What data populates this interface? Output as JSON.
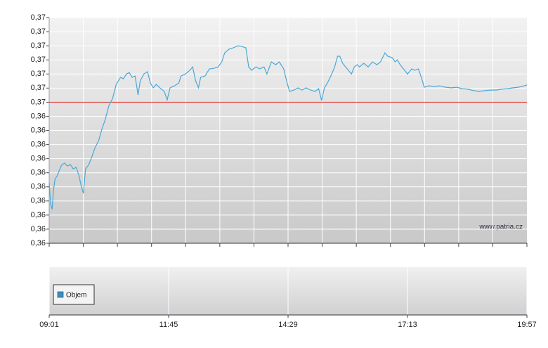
{
  "chart_data": [
    {
      "type": "line",
      "source": "www.patria.cz",
      "xlim": [
        541,
        1197
      ],
      "ylim": [
        0.36,
        0.368
      ],
      "yticks": [
        {
          "value": 0.36,
          "label": "0,36"
        },
        {
          "value": 0.3605,
          "label": "0,36"
        },
        {
          "value": 0.361,
          "label": "0,36"
        },
        {
          "value": 0.3615,
          "label": "0,36"
        },
        {
          "value": 0.362,
          "label": "0,36"
        },
        {
          "value": 0.3625,
          "label": "0,36"
        },
        {
          "value": 0.363,
          "label": "0,36"
        },
        {
          "value": 0.3635,
          "label": "0,36"
        },
        {
          "value": 0.364,
          "label": "0,36"
        },
        {
          "value": 0.3645,
          "label": "0,36"
        },
        {
          "value": 0.365,
          "label": "0,37"
        },
        {
          "value": 0.3655,
          "label": "0,37"
        },
        {
          "value": 0.366,
          "label": "0,37"
        },
        {
          "value": 0.3665,
          "label": "0,37"
        },
        {
          "value": 0.367,
          "label": "0,37"
        },
        {
          "value": 0.3675,
          "label": "0,37"
        },
        {
          "value": 0.368,
          "label": "0,37"
        }
      ],
      "grid": true,
      "reference_line": {
        "value": 0.365,
        "color": "#e03030"
      },
      "x": [
        541,
        543,
        545,
        547,
        549,
        552,
        555,
        558,
        562,
        566,
        570,
        574,
        578,
        582,
        585,
        588,
        591,
        595,
        599,
        604,
        609,
        613,
        618,
        623,
        628,
        633,
        636,
        639,
        643,
        647,
        651,
        655,
        659,
        663,
        666,
        671,
        676,
        680,
        684,
        688,
        693,
        699,
        703,
        707,
        713,
        719,
        722,
        728,
        734,
        738,
        742,
        746,
        749,
        755,
        761,
        767,
        773,
        778,
        782,
        788,
        794,
        800,
        805,
        811,
        815,
        819,
        825,
        830,
        836,
        840,
        846,
        852,
        857,
        863,
        867,
        871,
        877,
        883,
        888,
        894,
        900,
        906,
        911,
        915,
        919,
        923,
        929,
        933,
        937,
        940,
        944,
        948,
        952,
        956,
        960,
        964,
        967,
        973,
        979,
        985,
        991,
        996,
        1002,
        1006,
        1012,
        1016,
        1019,
        1023,
        1029,
        1033,
        1039,
        1043,
        1048,
        1052,
        1056,
        1062,
        1070,
        1077,
        1085,
        1093,
        1101,
        1108,
        1116,
        1124,
        1131,
        1139,
        1147,
        1155,
        1162,
        1170,
        1178,
        1185,
        1193,
        1197
      ],
      "series": [
        {
          "color": "#4aa8d8",
          "values": [
            0.36214,
            0.3614,
            0.3612,
            0.36189,
            0.36227,
            0.36239,
            0.36259,
            0.36277,
            0.36284,
            0.36274,
            0.36279,
            0.36264,
            0.36269,
            0.36239,
            0.36202,
            0.36177,
            0.36264,
            0.36277,
            0.36302,
            0.36339,
            0.36364,
            0.36401,
            0.36439,
            0.36488,
            0.36513,
            0.36563,
            0.36576,
            0.36588,
            0.36583,
            0.366,
            0.36605,
            0.36588,
            0.36593,
            0.36526,
            0.36576,
            0.366,
            0.36608,
            0.36568,
            0.36551,
            0.36563,
            0.36551,
            0.36538,
            0.36508,
            0.36551,
            0.36558,
            0.36568,
            0.36593,
            0.366,
            0.36613,
            0.36625,
            0.36576,
            0.36551,
            0.36588,
            0.36593,
            0.36618,
            0.3662,
            0.36625,
            0.36643,
            0.36675,
            0.36688,
            0.36693,
            0.367,
            0.36698,
            0.36693,
            0.36625,
            0.36613,
            0.36625,
            0.36618,
            0.36625,
            0.366,
            0.36643,
            0.36633,
            0.36643,
            0.36618,
            0.36576,
            0.36538,
            0.36543,
            0.36551,
            0.36543,
            0.36551,
            0.36543,
            0.36538,
            0.36548,
            0.36506,
            0.36551,
            0.36568,
            0.366,
            0.36625,
            0.36663,
            0.36663,
            0.36638,
            0.36625,
            0.36613,
            0.366,
            0.36625,
            0.36633,
            0.36625,
            0.36638,
            0.36625,
            0.36643,
            0.36633,
            0.36643,
            0.36675,
            0.36663,
            0.36658,
            0.36643,
            0.3665,
            0.36633,
            0.36613,
            0.366,
            0.36618,
            0.36613,
            0.36618,
            0.36588,
            0.36553,
            0.36558,
            0.36556,
            0.36558,
            0.36553,
            0.36551,
            0.36553,
            0.36548,
            0.36546,
            0.36541,
            0.36538,
            0.36541,
            0.36543,
            0.36543,
            0.36546,
            0.36548,
            0.36551,
            0.36553,
            0.36558,
            0.36561
          ]
        }
      ]
    },
    {
      "type": "bar",
      "xlim": [
        541,
        1197
      ],
      "xticks": [
        {
          "value": 541,
          "label": "09:01"
        },
        {
          "value": 705,
          "label": "11:45"
        },
        {
          "value": 869,
          "label": "14:29"
        },
        {
          "value": 1033,
          "label": "17:13"
        },
        {
          "value": 1197,
          "label": "19:57"
        }
      ],
      "grid": true,
      "series": [
        {
          "name": "Objem",
          "color": "#3a8fc4",
          "values": []
        }
      ]
    }
  ]
}
